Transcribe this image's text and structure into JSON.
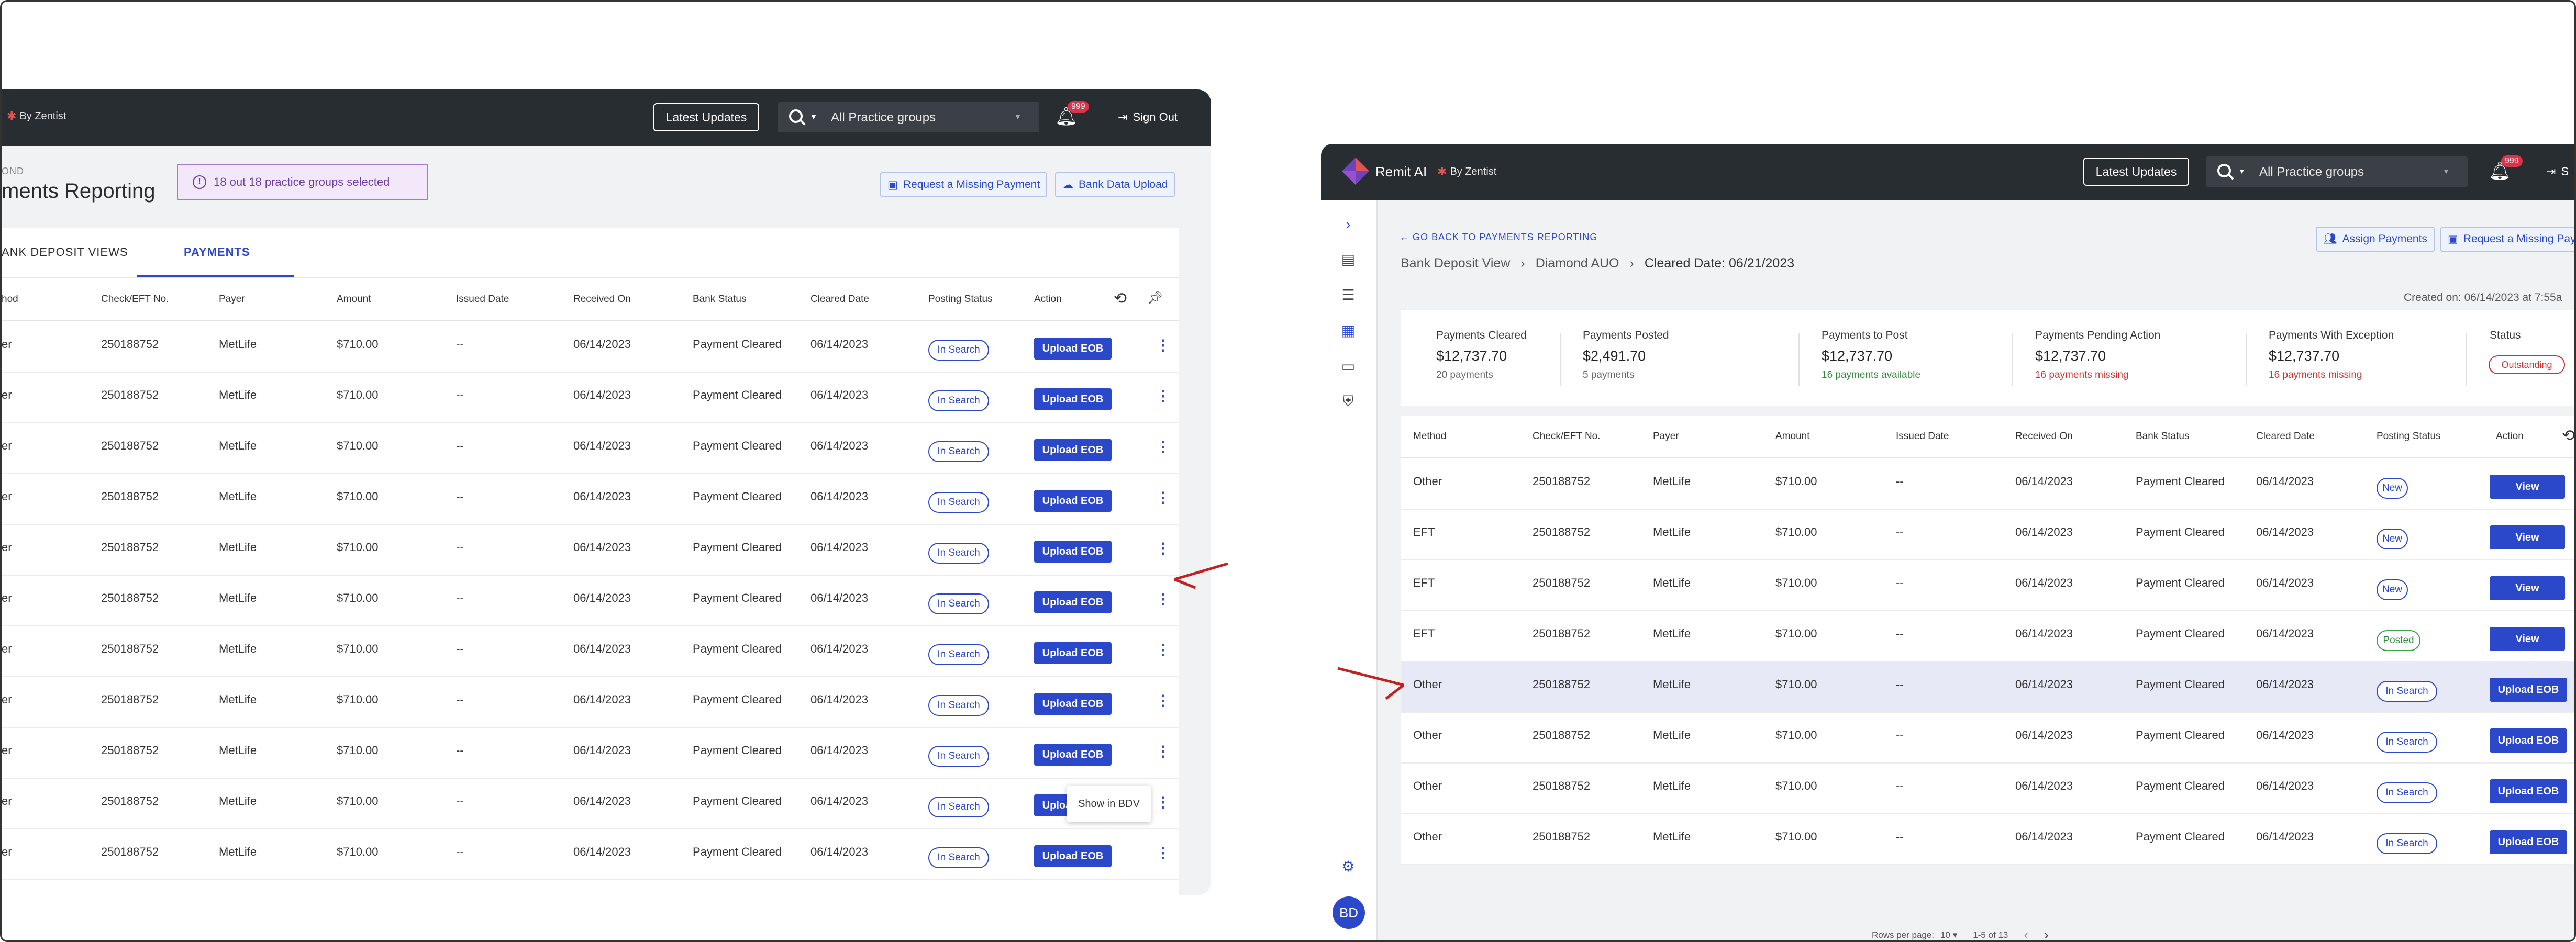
{
  "left": {
    "by_zentist": "By Zentist",
    "latest_updates": "Latest Updates",
    "search_value": "All Practice groups",
    "notif_count": "999",
    "sign_out": "Sign Out",
    "breadcrumb_fragment": "OND",
    "page_title": "ments Reporting",
    "selected_groups": "18 out 18 practice groups selected",
    "request_missing": "Request a Missing Payment",
    "bank_upload": "Bank Data Upload",
    "tabs": [
      "ANK DEPOSIT VIEWS",
      "PAYMENTS"
    ],
    "headers": [
      "hod",
      "Check/EFT No.",
      "Payer",
      "Amount",
      "Issued Date",
      "Received On",
      "Bank Status",
      "Cleared Date",
      "Posting Status",
      "Action"
    ],
    "rows": [
      [
        "er",
        "250188752",
        "MetLife",
        "$710.00",
        "--",
        "06/14/2023",
        "Payment Cleared",
        "06/14/2023",
        "In Search",
        "Upload EOB"
      ],
      [
        "er",
        "250188752",
        "MetLife",
        "$710.00",
        "--",
        "06/14/2023",
        "Payment Cleared",
        "06/14/2023",
        "In Search",
        "Upload EOB"
      ],
      [
        "er",
        "250188752",
        "MetLife",
        "$710.00",
        "--",
        "06/14/2023",
        "Payment Cleared",
        "06/14/2023",
        "In Search",
        "Upload EOB"
      ],
      [
        "er",
        "250188752",
        "MetLife",
        "$710.00",
        "--",
        "06/14/2023",
        "Payment Cleared",
        "06/14/2023",
        "In Search",
        "Upload EOB"
      ],
      [
        "er",
        "250188752",
        "MetLife",
        "$710.00",
        "--",
        "06/14/2023",
        "Payment Cleared",
        "06/14/2023",
        "In Search",
        "Upload EOB"
      ],
      [
        "er",
        "250188752",
        "MetLife",
        "$710.00",
        "--",
        "06/14/2023",
        "Payment Cleared",
        "06/14/2023",
        "In Search",
        "Upload EOB"
      ],
      [
        "er",
        "250188752",
        "MetLife",
        "$710.00",
        "--",
        "06/14/2023",
        "Payment Cleared",
        "06/14/2023",
        "In Search",
        "Upload EOB"
      ],
      [
        "er",
        "250188752",
        "MetLife",
        "$710.00",
        "--",
        "06/14/2023",
        "Payment Cleared",
        "06/14/2023",
        "In Search",
        "Upload EOB"
      ],
      [
        "er",
        "250188752",
        "MetLife",
        "$710.00",
        "--",
        "06/14/2023",
        "Payment Cleared",
        "06/14/2023",
        "In Search",
        "Upload EOB"
      ],
      [
        "er",
        "250188752",
        "MetLife",
        "$710.00",
        "--",
        "06/14/2023",
        "Payment Cleared",
        "06/14/2023",
        "In Search",
        "Upload EOB"
      ],
      [
        "er",
        "250188752",
        "MetLife",
        "$710.00",
        "--",
        "06/14/2023",
        "Payment Cleared",
        "06/14/2023",
        "In Search",
        "Upload EOB"
      ]
    ],
    "context_menu_item": "Show in BDV"
  },
  "right": {
    "app_title": "Remit AI",
    "by_zentist": "By Zentist",
    "latest_updates": "Latest Updates",
    "search_value": "All Practice groups",
    "notif_count": "999",
    "sign_out_fragment": "S",
    "back_link": "GO BACK TO PAYMENTS REPORTING",
    "crumbs": [
      "Bank Deposit View",
      "Diamond AUO",
      "Cleared Date: 06/21/2023"
    ],
    "assign_payments": "Assign Payments",
    "request_missing": "Request a Missing Pay",
    "created_on": "Created on: 06/14/2023  at 7:55a",
    "summary": [
      {
        "label": "Payments Cleared",
        "value": "$12,737.70",
        "sub": "20 payments",
        "tone": "gray"
      },
      {
        "label": "Payments Posted",
        "value": "$2,491.70",
        "sub": "5 payments",
        "tone": "gray"
      },
      {
        "label": "Payments to Post",
        "value": "$12,737.70",
        "sub": "16 payments available",
        "tone": "green"
      },
      {
        "label": "Payments Pending Action",
        "value": "$12,737.70",
        "sub": "16 payments missing",
        "tone": "red"
      },
      {
        "label": "Payments With Exception",
        "value": "$12,737.70",
        "sub": "16 payments missing",
        "tone": "red"
      }
    ],
    "status_label": "Status",
    "status_value": "Outstanding",
    "headers": [
      "Method",
      "Check/EFT No.",
      "Payer",
      "Amount",
      "Issued Date",
      "Received On",
      "Bank Status",
      "Cleared Date",
      "Posting Status",
      "Action"
    ],
    "rows": [
      [
        "Other",
        "250188752",
        "MetLife",
        "$710.00",
        "--",
        "06/14/2023",
        "Payment Cleared",
        "06/14/2023",
        "New",
        "View"
      ],
      [
        "EFT",
        "250188752",
        "MetLife",
        "$710.00",
        "--",
        "06/14/2023",
        "Payment Cleared",
        "06/14/2023",
        "New",
        "View"
      ],
      [
        "EFT",
        "250188752",
        "MetLife",
        "$710.00",
        "--",
        "06/14/2023",
        "Payment Cleared",
        "06/14/2023",
        "New",
        "View"
      ],
      [
        "EFT",
        "250188752",
        "MetLife",
        "$710.00",
        "--",
        "06/14/2023",
        "Payment Cleared",
        "06/14/2023",
        "Posted",
        "View"
      ],
      [
        "Other",
        "250188752",
        "MetLife",
        "$710.00",
        "--",
        "06/14/2023",
        "Payment Cleared",
        "06/14/2023",
        "In Search",
        "Upload EOB"
      ],
      [
        "Other",
        "250188752",
        "MetLife",
        "$710.00",
        "--",
        "06/14/2023",
        "Payment Cleared",
        "06/14/2023",
        "In Search",
        "Upload EOB"
      ],
      [
        "Other",
        "250188752",
        "MetLife",
        "$710.00",
        "--",
        "06/14/2023",
        "Payment Cleared",
        "06/14/2023",
        "In Search",
        "Upload EOB"
      ],
      [
        "Other",
        "250188752",
        "MetLife",
        "$710.00",
        "--",
        "06/14/2023",
        "Payment Cleared",
        "06/14/2023",
        "In Search",
        "Upload EOB"
      ]
    ],
    "rows_per_page_label": "Rows per page:",
    "rows_per_page_value": "10",
    "page_range": "1-5 of 13",
    "user_initials": "BD"
  },
  "colors": {
    "primary": "#2a48c9",
    "topbar": "#282d31",
    "arrow": "#c42020",
    "highlight_row": "#e8e9f6"
  }
}
